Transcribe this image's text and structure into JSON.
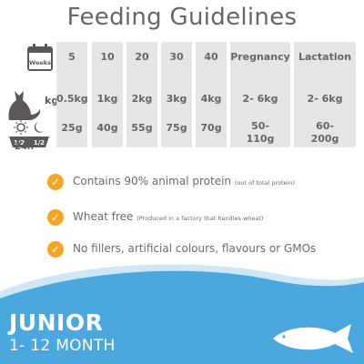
{
  "title": "Feeding Guidelines",
  "icons": {
    "calendar": "calendar-icon",
    "cat": "cat-icon",
    "bowl": "day-night-bowl-icon",
    "fish": "fish-icon"
  },
  "row_labels": {
    "calendar_text": "Weeks",
    "weight_unit": "kg",
    "bowl_halves": [
      "1/2",
      "1/2"
    ],
    "period": "24h"
  },
  "columns": [
    {
      "header": "5",
      "weight": "0.5kg",
      "food": "25g"
    },
    {
      "header": "10",
      "weight": "1kg",
      "food": "40g"
    },
    {
      "header": "20",
      "weight": "2kg",
      "food": "55g"
    },
    {
      "header": "30",
      "weight": "3kg",
      "food": "75g"
    },
    {
      "header": "40",
      "weight": "4kg",
      "food": "70g"
    },
    {
      "header": "Pregnancy",
      "weight": "2- 6kg",
      "food_line1": "50-",
      "food_line2": "110g"
    },
    {
      "header": "Lactation",
      "weight": "2- 6kg",
      "food_line1": "60-",
      "food_line2": "200g"
    }
  ],
  "bullets": [
    {
      "check": "✓",
      "text": "Contains 90% animal protein",
      "note": "(out of total protein)"
    },
    {
      "check": "✓",
      "text": "Wheat free",
      "note": "(Produced in a factory that handles wheat)"
    },
    {
      "check": "✓",
      "text": "No fillers, artificial colours, flavours or GMOs",
      "note": ""
    }
  ],
  "banner": {
    "line1": "JUNIOR",
    "line2": "1- 12 MONTH"
  },
  "colors": {
    "column_bg": "#e5e5e5",
    "accent_orange": "#f4a523",
    "wave_blue": "#4aa8df",
    "text_gray": "#6d6a6a"
  }
}
